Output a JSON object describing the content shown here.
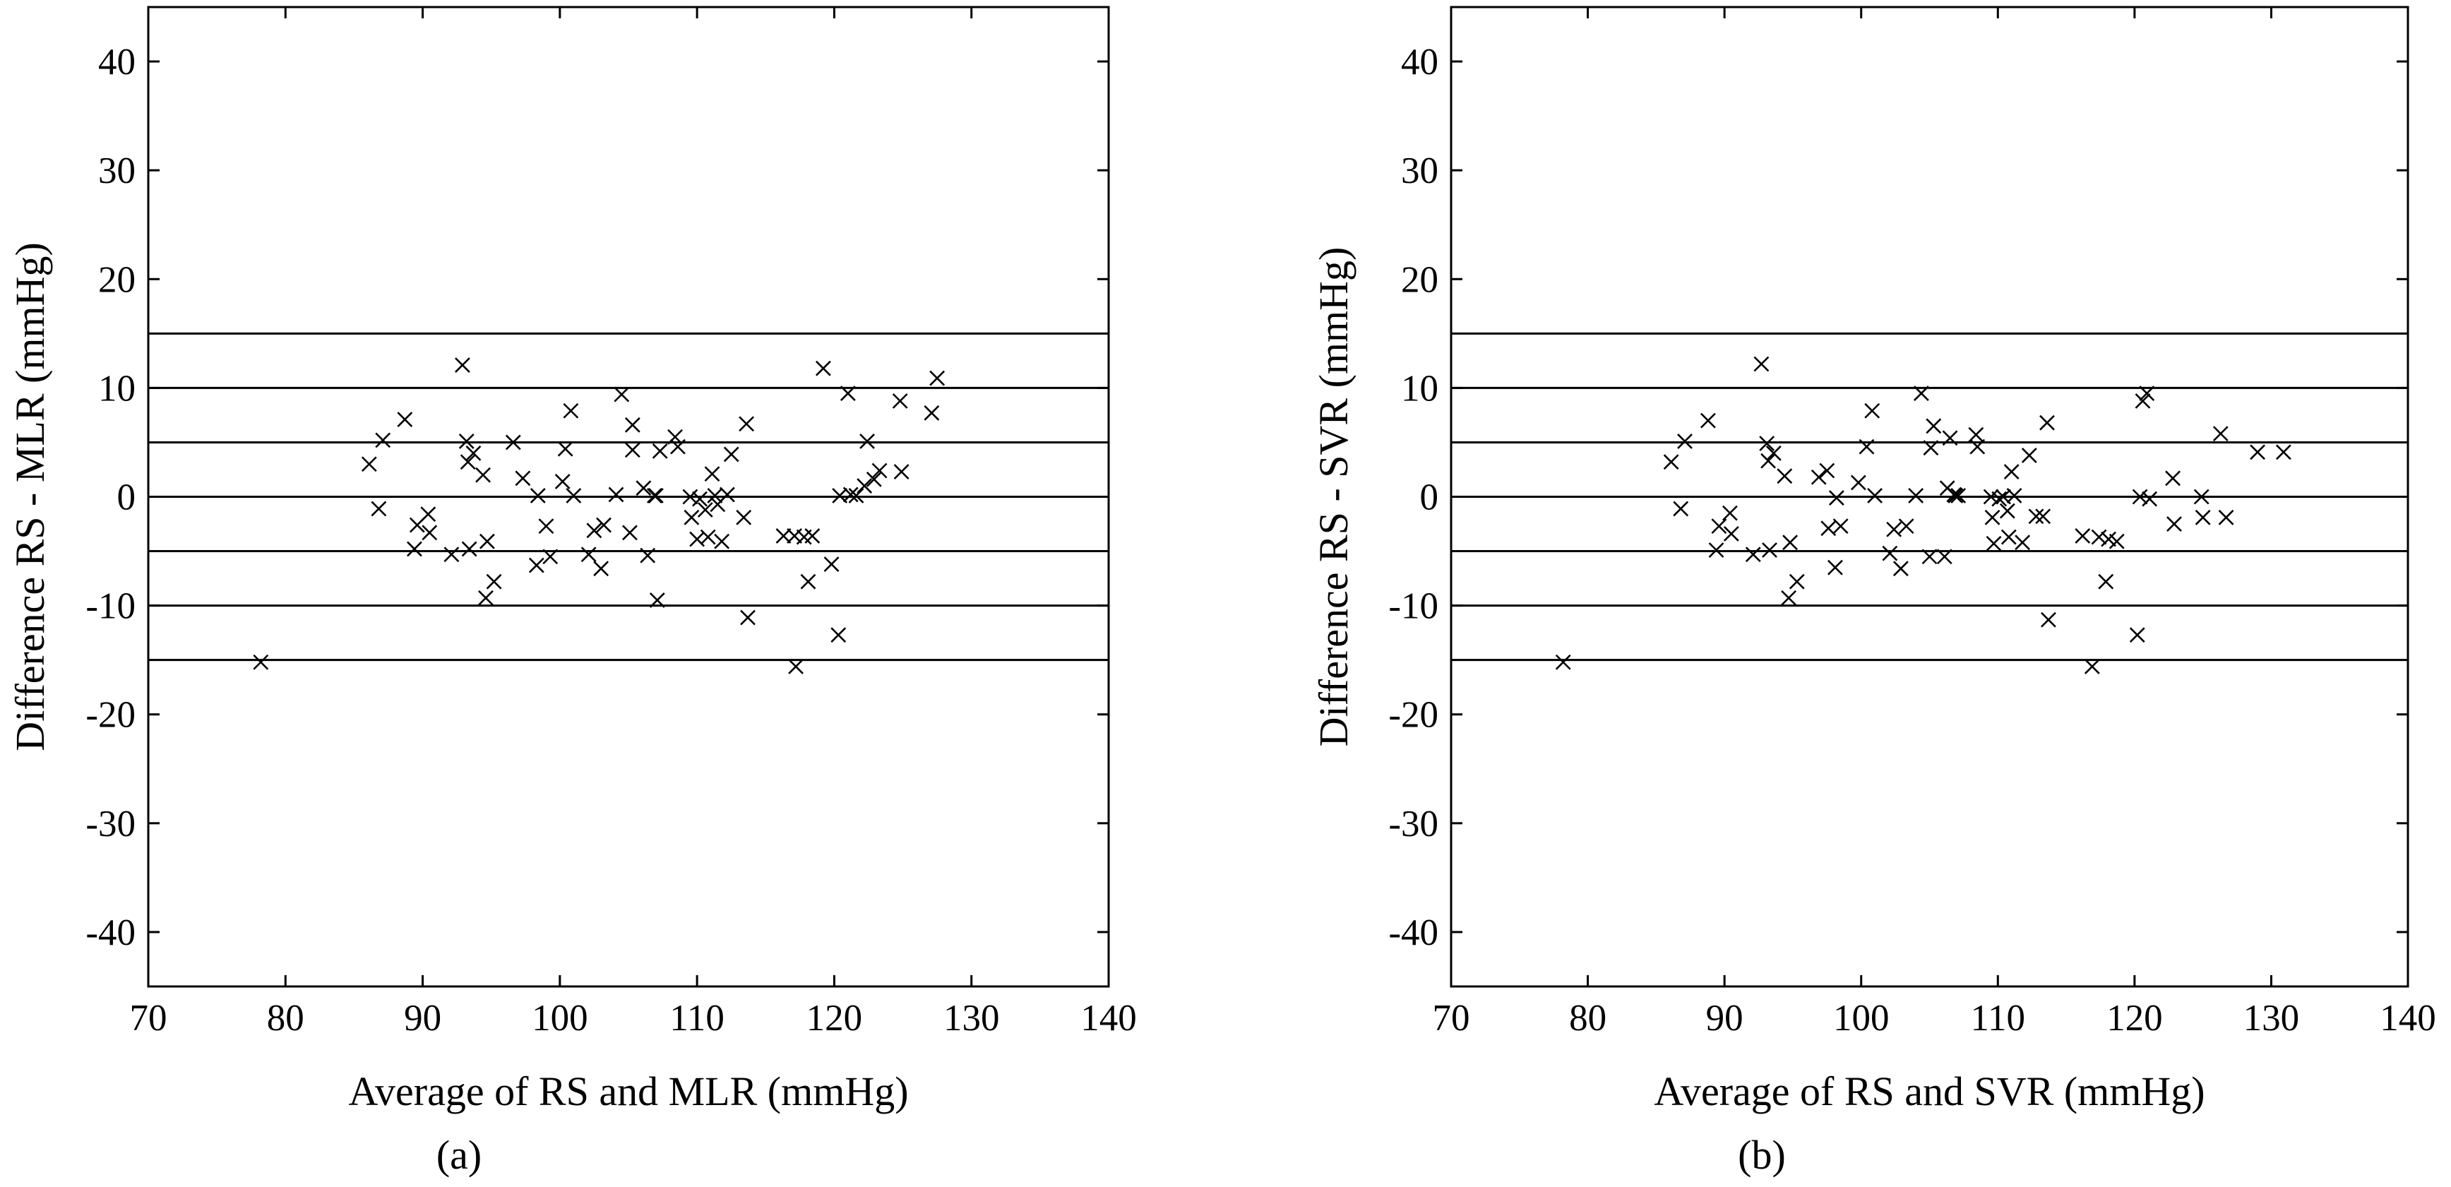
{
  "chart_data": [
    {
      "type": "scatter",
      "panel": "(a)",
      "caption": "(a)",
      "xlabel": "Average of RS and MLR (mmHg)",
      "ylabel": "Difference RS - MLR (mmHg)",
      "xlim": [
        70,
        140
      ],
      "ylim": [
        -45,
        45
      ],
      "xticks": [
        70,
        80,
        90,
        100,
        110,
        120,
        130,
        140
      ],
      "yticks": [
        -40,
        -30,
        -20,
        -10,
        0,
        10,
        20,
        30,
        40
      ],
      "reference_lines": [
        15,
        10,
        5,
        0,
        -5,
        -10,
        -15
      ],
      "marker": "x",
      "points": [
        [
          78.2,
          -15.2
        ],
        [
          86.1,
          3.0
        ],
        [
          86.8,
          -1.1
        ],
        [
          87.1,
          5.2
        ],
        [
          88.7,
          7.1
        ],
        [
          89.4,
          -4.8
        ],
        [
          89.6,
          -2.6
        ],
        [
          90.4,
          -1.6
        ],
        [
          90.5,
          -3.3
        ],
        [
          92.1,
          -5.3
        ],
        [
          92.9,
          12.1
        ],
        [
          93.2,
          5.1
        ],
        [
          93.3,
          3.2
        ],
        [
          93.4,
          -4.8
        ],
        [
          93.7,
          4.0
        ],
        [
          94.4,
          2.0
        ],
        [
          94.6,
          -9.3
        ],
        [
          94.7,
          -4.1
        ],
        [
          95.2,
          -7.8
        ],
        [
          96.6,
          5.0
        ],
        [
          97.3,
          1.7
        ],
        [
          98.3,
          -6.3
        ],
        [
          98.4,
          0.1
        ],
        [
          99.0,
          -2.7
        ],
        [
          99.3,
          -5.5
        ],
        [
          100.2,
          1.4
        ],
        [
          100.4,
          4.4
        ],
        [
          100.8,
          7.9
        ],
        [
          101.0,
          0.1
        ],
        [
          102.1,
          -5.3
        ],
        [
          102.5,
          -3.1
        ],
        [
          103.0,
          -6.6
        ],
        [
          103.2,
          -2.6
        ],
        [
          104.1,
          0.2
        ],
        [
          104.5,
          9.4
        ],
        [
          105.1,
          -3.3
        ],
        [
          105.3,
          6.6
        ],
        [
          105.3,
          4.3
        ],
        [
          106.1,
          0.8
        ],
        [
          106.4,
          -5.4
        ],
        [
          106.9,
          0.1
        ],
        [
          107.0,
          0.1
        ],
        [
          107.1,
          -9.5
        ],
        [
          107.3,
          4.2
        ],
        [
          108.4,
          5.5
        ],
        [
          108.6,
          4.6
        ],
        [
          109.5,
          0.0
        ],
        [
          109.6,
          -1.9
        ],
        [
          110.0,
          -3.9
        ],
        [
          110.2,
          -0.2
        ],
        [
          110.6,
          -1.2
        ],
        [
          110.8,
          -3.7
        ],
        [
          111.1,
          2.1
        ],
        [
          111.3,
          0.1
        ],
        [
          111.5,
          -0.7
        ],
        [
          111.8,
          -4.1
        ],
        [
          112.2,
          0.2
        ],
        [
          112.5,
          3.9
        ],
        [
          113.4,
          -1.9
        ],
        [
          113.6,
          6.7
        ],
        [
          113.7,
          -11.1
        ],
        [
          116.3,
          -3.6
        ],
        [
          117.1,
          -3.6
        ],
        [
          117.2,
          -15.6
        ],
        [
          117.8,
          -3.7
        ],
        [
          118.1,
          -7.8
        ],
        [
          118.4,
          -3.6
        ],
        [
          119.2,
          11.8
        ],
        [
          119.8,
          -6.2
        ],
        [
          120.3,
          -12.7
        ],
        [
          120.4,
          0.1
        ],
        [
          121.0,
          9.5
        ],
        [
          121.2,
          0.2
        ],
        [
          121.6,
          0.1
        ],
        [
          122.2,
          1.0
        ],
        [
          122.4,
          5.1
        ],
        [
          122.9,
          1.6
        ],
        [
          123.3,
          2.4
        ],
        [
          124.8,
          8.8
        ],
        [
          124.9,
          2.3
        ],
        [
          127.1,
          7.7
        ],
        [
          127.5,
          10.9
        ]
      ]
    },
    {
      "type": "scatter",
      "panel": "(b)",
      "caption": "(b)",
      "xlabel": "Average of RS and SVR (mmHg)",
      "ylabel": "Difference RS - SVR (mmHg)",
      "xlim": [
        70,
        140
      ],
      "ylim": [
        -45,
        45
      ],
      "xticks": [
        70,
        80,
        90,
        100,
        110,
        120,
        130,
        140
      ],
      "yticks": [
        -40,
        -30,
        -20,
        -10,
        0,
        10,
        20,
        30,
        40
      ],
      "reference_lines": [
        15,
        10,
        5,
        0,
        -5,
        -10,
        -15
      ],
      "marker": "x",
      "points": [
        [
          78.2,
          -15.2
        ],
        [
          86.1,
          3.2
        ],
        [
          86.8,
          -1.1
        ],
        [
          87.1,
          5.1
        ],
        [
          88.8,
          7.0
        ],
        [
          89.4,
          -4.9
        ],
        [
          89.6,
          -2.7
        ],
        [
          90.4,
          -1.5
        ],
        [
          90.5,
          -3.4
        ],
        [
          92.1,
          -5.3
        ],
        [
          92.7,
          12.2
        ],
        [
          93.1,
          4.9
        ],
        [
          93.2,
          3.3
        ],
        [
          93.3,
          -4.9
        ],
        [
          93.6,
          4.0
        ],
        [
          94.4,
          1.9
        ],
        [
          94.7,
          -9.3
        ],
        [
          94.8,
          -4.2
        ],
        [
          95.3,
          -7.8
        ],
        [
          96.9,
          1.8
        ],
        [
          97.5,
          2.4
        ],
        [
          97.6,
          -2.9
        ],
        [
          98.1,
          -6.5
        ],
        [
          98.2,
          -0.1
        ],
        [
          98.5,
          -2.7
        ],
        [
          99.8,
          1.3
        ],
        [
          100.4,
          4.6
        ],
        [
          100.8,
          7.9
        ],
        [
          101.0,
          0.1
        ],
        [
          102.1,
          -5.2
        ],
        [
          102.4,
          -3.0
        ],
        [
          102.9,
          -6.6
        ],
        [
          103.3,
          -2.7
        ],
        [
          104.0,
          0.1
        ],
        [
          104.4,
          9.5
        ],
        [
          105.0,
          -5.5
        ],
        [
          105.1,
          4.5
        ],
        [
          105.3,
          6.5
        ],
        [
          106.1,
          -5.5
        ],
        [
          106.3,
          0.8
        ],
        [
          106.5,
          5.4
        ],
        [
          106.8,
          0.2
        ],
        [
          106.9,
          0.1
        ],
        [
          107.1,
          0.1
        ],
        [
          108.4,
          5.7
        ],
        [
          108.5,
          4.6
        ],
        [
          109.5,
          0.0
        ],
        [
          109.6,
          -1.9
        ],
        [
          109.7,
          -4.3
        ],
        [
          110.1,
          -0.2
        ],
        [
          110.4,
          0.0
        ],
        [
          110.7,
          -1.3
        ],
        [
          110.8,
          -3.7
        ],
        [
          111.0,
          2.3
        ],
        [
          111.2,
          0.1
        ],
        [
          111.8,
          -4.2
        ],
        [
          112.3,
          3.8
        ],
        [
          112.8,
          -1.8
        ],
        [
          113.3,
          -1.8
        ],
        [
          113.6,
          6.8
        ],
        [
          113.7,
          -11.3
        ],
        [
          116.2,
          -3.6
        ],
        [
          116.9,
          -15.6
        ],
        [
          117.4,
          -3.7
        ],
        [
          117.9,
          -7.8
        ],
        [
          118.1,
          -3.9
        ],
        [
          118.7,
          -4.1
        ],
        [
          120.2,
          -12.7
        ],
        [
          120.4,
          0.0
        ],
        [
          120.6,
          8.8
        ],
        [
          120.9,
          9.5
        ],
        [
          121.1,
          -0.2
        ],
        [
          122.8,
          1.7
        ],
        [
          122.9,
          -2.5
        ],
        [
          124.9,
          0.0
        ],
        [
          125.0,
          -1.9
        ],
        [
          126.3,
          5.8
        ],
        [
          126.7,
          -1.9
        ],
        [
          129.0,
          4.1
        ],
        [
          130.9,
          4.1
        ]
      ]
    }
  ]
}
